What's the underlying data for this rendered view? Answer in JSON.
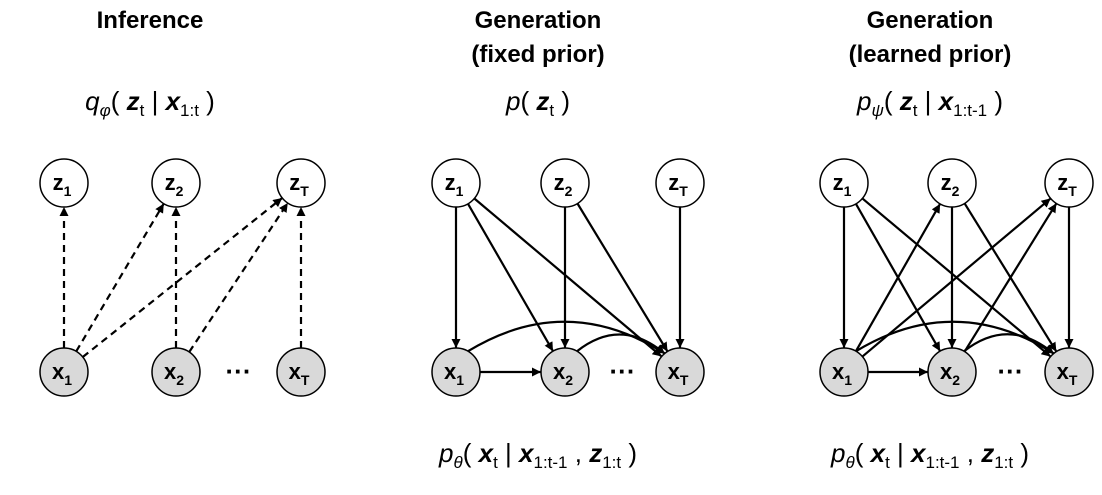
{
  "panels": [
    {
      "id": "inference",
      "title_lines": [
        "Inference"
      ],
      "top_formula": [
        {
          "t": "q",
          "i": true
        },
        {
          "t": "φ",
          "sub": true,
          "i": true
        },
        {
          "t": "( "
        },
        {
          "t": "z",
          "b": true,
          "i": true
        },
        {
          "t": "t",
          "sub": true
        },
        {
          "t": " | "
        },
        {
          "t": "x",
          "b": true,
          "i": true
        },
        {
          "t": "1:t",
          "sub": true
        },
        {
          "t": " )"
        }
      ],
      "bottom_formula": null,
      "z_nodes": [
        {
          "var": "z",
          "sub": "1"
        },
        {
          "var": "z",
          "sub": "2"
        },
        {
          "var": "z",
          "sub": "T"
        }
      ],
      "x_nodes": [
        {
          "var": "x",
          "sub": "1"
        },
        {
          "var": "x",
          "sub": "2"
        },
        {
          "var": "x",
          "sub": "T"
        }
      ],
      "ellipsis": "···",
      "edges": [
        {
          "from": "x1",
          "to": "z1",
          "style": "dashed"
        },
        {
          "from": "x1",
          "to": "z2",
          "style": "dashed"
        },
        {
          "from": "x1",
          "to": "zT",
          "style": "dashed"
        },
        {
          "from": "x2",
          "to": "z2",
          "style": "dashed"
        },
        {
          "from": "x2",
          "to": "zT",
          "style": "dashed"
        },
        {
          "from": "xT",
          "to": "zT",
          "style": "dashed"
        }
      ]
    },
    {
      "id": "generation-fixed",
      "title_lines": [
        "Generation",
        "(fixed prior)"
      ],
      "top_formula": [
        {
          "t": "p",
          "i": true
        },
        {
          "t": "( "
        },
        {
          "t": "z",
          "b": true,
          "i": true
        },
        {
          "t": "t",
          "sub": true
        },
        {
          "t": " )"
        }
      ],
      "bottom_formula": [
        {
          "t": "p",
          "i": true
        },
        {
          "t": "θ",
          "sub": true,
          "i": true
        },
        {
          "t": "( "
        },
        {
          "t": "x",
          "b": true,
          "i": true
        },
        {
          "t": "t",
          "sub": true
        },
        {
          "t": " | "
        },
        {
          "t": "x",
          "b": true,
          "i": true
        },
        {
          "t": "1:t-1",
          "sub": true
        },
        {
          "t": " , "
        },
        {
          "t": "z",
          "b": true,
          "i": true
        },
        {
          "t": "1:t",
          "sub": true
        },
        {
          "t": " )"
        }
      ],
      "z_nodes": [
        {
          "var": "z",
          "sub": "1"
        },
        {
          "var": "z",
          "sub": "2"
        },
        {
          "var": "z",
          "sub": "T"
        }
      ],
      "x_nodes": [
        {
          "var": "x",
          "sub": "1"
        },
        {
          "var": "x",
          "sub": "2"
        },
        {
          "var": "x",
          "sub": "T"
        }
      ],
      "ellipsis": "···",
      "edges": [
        {
          "from": "z1",
          "to": "x1",
          "style": "solid"
        },
        {
          "from": "z1",
          "to": "x2",
          "style": "solid"
        },
        {
          "from": "z1",
          "to": "xT",
          "style": "solid"
        },
        {
          "from": "z2",
          "to": "x2",
          "style": "solid"
        },
        {
          "from": "z2",
          "to": "xT",
          "style": "solid"
        },
        {
          "from": "zT",
          "to": "xT",
          "style": "solid"
        },
        {
          "from": "x1",
          "to": "x2",
          "style": "solid"
        },
        {
          "from": "x1",
          "to": "xT",
          "style": "solid",
          "curve": true
        },
        {
          "from": "x2",
          "to": "xT",
          "style": "solid",
          "curve": true
        }
      ]
    },
    {
      "id": "generation-learned",
      "title_lines": [
        "Generation",
        "(learned prior)"
      ],
      "top_formula": [
        {
          "t": "p",
          "i": true
        },
        {
          "t": "ψ",
          "sub": true,
          "i": true
        },
        {
          "t": "( "
        },
        {
          "t": "z",
          "b": true,
          "i": true
        },
        {
          "t": "t",
          "sub": true
        },
        {
          "t": " | "
        },
        {
          "t": "x",
          "b": true,
          "i": true
        },
        {
          "t": "1:t-1",
          "sub": true
        },
        {
          "t": " )"
        }
      ],
      "bottom_formula": [
        {
          "t": "p",
          "i": true
        },
        {
          "t": "θ",
          "sub": true,
          "i": true
        },
        {
          "t": "( "
        },
        {
          "t": "x",
          "b": true,
          "i": true
        },
        {
          "t": "t",
          "sub": true
        },
        {
          "t": " | "
        },
        {
          "t": "x",
          "b": true,
          "i": true
        },
        {
          "t": "1:t-1",
          "sub": true
        },
        {
          "t": " , "
        },
        {
          "t": "z",
          "b": true,
          "i": true
        },
        {
          "t": "1:t",
          "sub": true
        },
        {
          "t": " )"
        }
      ],
      "z_nodes": [
        {
          "var": "z",
          "sub": "1"
        },
        {
          "var": "z",
          "sub": "2"
        },
        {
          "var": "z",
          "sub": "T"
        }
      ],
      "x_nodes": [
        {
          "var": "x",
          "sub": "1"
        },
        {
          "var": "x",
          "sub": "2"
        },
        {
          "var": "x",
          "sub": "T"
        }
      ],
      "ellipsis": "···",
      "edges": [
        {
          "from": "z1",
          "to": "x1",
          "style": "solid"
        },
        {
          "from": "z1",
          "to": "x2",
          "style": "solid"
        },
        {
          "from": "z1",
          "to": "xT",
          "style": "solid"
        },
        {
          "from": "z2",
          "to": "x2",
          "style": "solid"
        },
        {
          "from": "z2",
          "to": "xT",
          "style": "solid"
        },
        {
          "from": "zT",
          "to": "xT",
          "style": "solid"
        },
        {
          "from": "x1",
          "to": "z2",
          "style": "solid"
        },
        {
          "from": "x1",
          "to": "zT",
          "style": "solid"
        },
        {
          "from": "x2",
          "to": "zT",
          "style": "solid"
        },
        {
          "from": "x1",
          "to": "x2",
          "style": "solid"
        },
        {
          "from": "x1",
          "to": "xT",
          "style": "solid",
          "curve": true
        },
        {
          "from": "x2",
          "to": "xT",
          "style": "solid",
          "curve": true
        }
      ]
    }
  ],
  "colors": {
    "latent_fill": "#ffffff",
    "observed_fill": "#d9d9d9",
    "stroke": "#000000"
  }
}
